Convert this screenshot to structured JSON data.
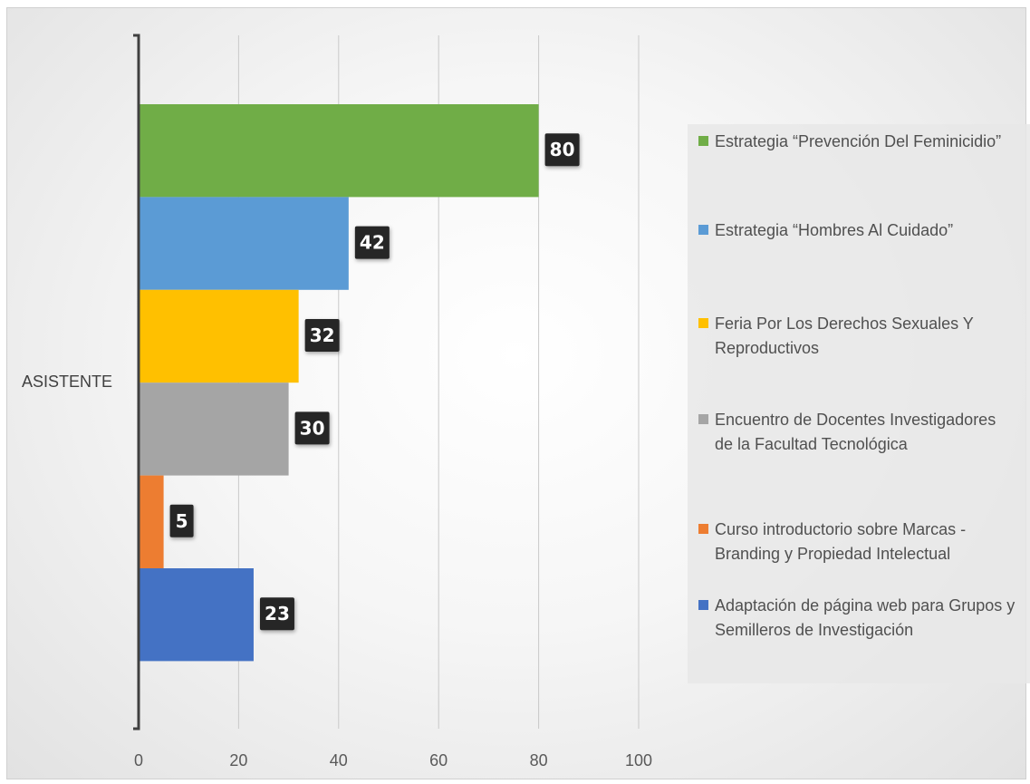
{
  "chart_data": {
    "type": "bar",
    "orientation": "horizontal",
    "categories": [
      "ASISTENTE"
    ],
    "series": [
      {
        "name": "Estrategia “Prevención Del Feminicidio”",
        "values": [
          80
        ],
        "color": "#70ad47"
      },
      {
        "name": "Estrategia “Hombres Al Cuidado”",
        "values": [
          42
        ],
        "color": "#5b9bd5"
      },
      {
        "name": "Feria Por Los Derechos Sexuales Y Reproductivos",
        "values": [
          32
        ],
        "color": "#ffc000"
      },
      {
        "name": "Encuentro de Docentes Investigadores de la Facultad Tecnológica",
        "values": [
          30
        ],
        "color": "#a5a5a5"
      },
      {
        "name": "Curso introductorio sobre Marcas - Branding y Propiedad Intelectual",
        "values": [
          5
        ],
        "color": "#ed7d31"
      },
      {
        "name": "Adaptación de página web para Grupos y  Semilleros de Investigación",
        "values": [
          23
        ],
        "color": "#4472c4"
      }
    ],
    "xlim": [
      0,
      100
    ],
    "xticks": [
      "0",
      "20",
      "40",
      "60",
      "80",
      "100"
    ],
    "xtick_values": [
      0,
      20,
      40,
      60,
      80,
      100
    ],
    "data_labels": [
      "80",
      "42",
      "32",
      "30",
      "5",
      "23"
    ],
    "grid": true,
    "legend_position": "right"
  }
}
